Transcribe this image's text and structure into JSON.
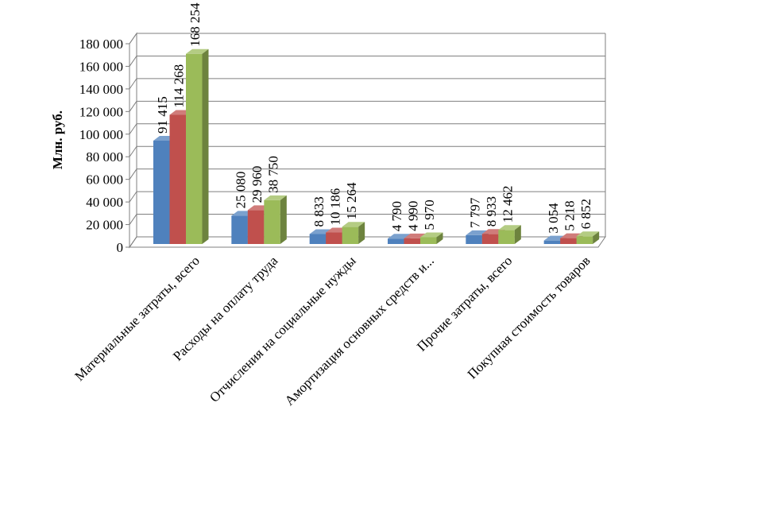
{
  "chart_data": {
    "type": "bar",
    "ylabel": "Млн. руб.",
    "ylim": [
      0,
      180000
    ],
    "yticks": [
      "0",
      "20 000",
      "40 000",
      "60 000",
      "80 000",
      "100 000",
      "120 000",
      "140 000",
      "160 000",
      "180 000"
    ],
    "grid": true,
    "categories": [
      "Материальные затраты, всего",
      "Расходы на оплату труда",
      "Отчисления на социальные нужды",
      "Амортизация основных средств и...",
      "Прочие затраты, всего",
      "Покупная стоимость товаров"
    ],
    "series": [
      {
        "color": "#4F81BD",
        "values": [
          91415,
          25080,
          8833,
          4790,
          7797,
          3054
        ],
        "labels": [
          "91 415",
          "25 080",
          "8 833",
          "4 790",
          "7 797",
          "3 054"
        ]
      },
      {
        "color": "#C0504D",
        "values": [
          114268,
          29960,
          10186,
          4990,
          8933,
          5218
        ],
        "labels": [
          "114 268",
          "29 960",
          "10 186",
          "4 990",
          "8 933",
          "5 218"
        ]
      },
      {
        "color": "#9BBB59",
        "values": [
          168254,
          38750,
          15264,
          5970,
          12462,
          6852
        ],
        "labels": [
          "168 254",
          "38 750",
          "15 264",
          "5 970",
          "12 462",
          "6 852"
        ]
      }
    ]
  }
}
